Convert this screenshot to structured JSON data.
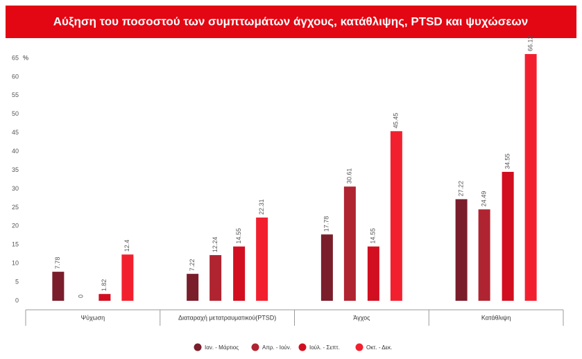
{
  "chart_data": {
    "type": "bar",
    "title": "Αύξηση του ποσοστού των συμπτωμάτων άγχους, κατάθλιψης, PTSD και ψυχώσεων",
    "y_unit": "%",
    "categories": [
      "Ψύχωση",
      "Διαταραχή μετατραυματικού(PTSD)",
      "Άγχος",
      "Κατάθλιψη"
    ],
    "series": [
      {
        "name": "Ιαν. - Μάρτιος",
        "color": "#7a1e2c",
        "values": [
          7.78,
          7.22,
          17.78,
          27.22
        ]
      },
      {
        "name": "Απρ. - Ιούν.",
        "color": "#b02431",
        "values": [
          0,
          12.24,
          30.61,
          24.49
        ]
      },
      {
        "name": "Ιούλ. - Σεπτ.",
        "color": "#d10f20",
        "values": [
          1.82,
          14.55,
          14.55,
          34.55
        ]
      },
      {
        "name": "Οκτ. - Δεκ.",
        "color": "#f2202f",
        "values": [
          12.4,
          22.31,
          45.45,
          66.12
        ]
      }
    ],
    "ylim": [
      0,
      65
    ],
    "yticks": [
      0,
      5,
      10,
      15,
      20,
      25,
      30,
      35,
      40,
      45,
      50,
      55,
      60,
      65
    ],
    "grid": false
  }
}
